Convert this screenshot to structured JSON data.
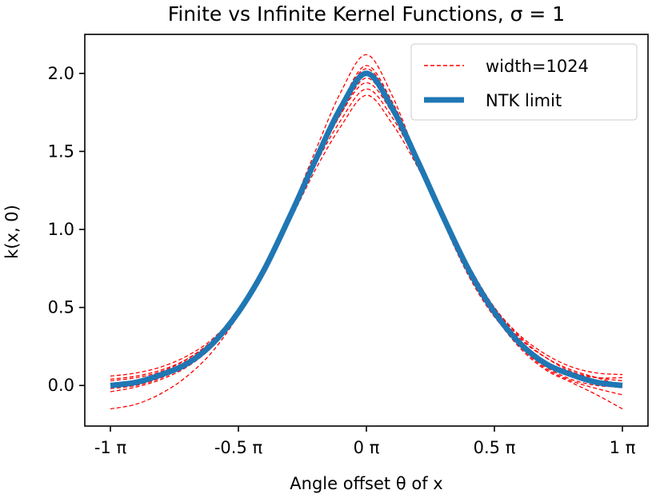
{
  "chart_data": {
    "type": "line",
    "title": "Finite vs Infinite Kernel Functions, σ = 1",
    "xlabel": "Angle offset θ of x",
    "ylabel": "k(x, 0)",
    "xlim": [
      -1.1,
      1.1
    ],
    "ylim": [
      -0.26,
      2.25
    ],
    "xticks": [
      -1,
      -0.5,
      0,
      0.5,
      1
    ],
    "xtick_labels": [
      "-1 π",
      "-0.5 π",
      "0 π",
      "0.5 π",
      "1 π"
    ],
    "yticks": [
      0.0,
      0.5,
      1.0,
      1.5,
      2.0
    ],
    "ytick_labels": [
      "0.0",
      "0.5",
      "1.0",
      "1.5",
      "2.0"
    ],
    "grid": false,
    "legend_position": "top-right",
    "legend": [
      {
        "label": "width=1024",
        "color": "#ff0000",
        "style": "dashed"
      },
      {
        "label": "NTK limit",
        "color": "#1f77b4",
        "style": "solid"
      }
    ],
    "series": [
      {
        "name": "NTK limit",
        "color": "#1f77b4",
        "x": [
          -1,
          -0.9,
          -0.8,
          -0.7,
          -0.6,
          -0.5,
          -0.4,
          -0.3,
          -0.2,
          -0.1,
          0,
          0.1,
          0.2,
          0.3,
          0.4,
          0.5,
          0.6,
          0.7,
          0.8,
          0.9,
          1
        ],
        "values": [
          0.0,
          0.02,
          0.07,
          0.14,
          0.27,
          0.47,
          0.74,
          1.08,
          1.44,
          1.78,
          2.0,
          1.78,
          1.44,
          1.08,
          0.74,
          0.47,
          0.27,
          0.14,
          0.07,
          0.02,
          0.0
        ]
      },
      {
        "name": "width=1024 sample 1",
        "color": "#ff0000",
        "x": [
          -1,
          -0.9,
          -0.8,
          -0.7,
          -0.6,
          -0.5,
          -0.4,
          -0.3,
          -0.2,
          -0.1,
          0,
          0.1,
          0.2,
          0.3,
          0.4,
          0.5,
          0.6,
          0.7,
          0.8,
          0.9,
          1
        ],
        "values": [
          -0.15,
          -0.12,
          -0.05,
          0.06,
          0.22,
          0.45,
          0.74,
          1.1,
          1.5,
          1.88,
          2.12,
          1.86,
          1.45,
          1.05,
          0.7,
          0.44,
          0.27,
          0.15,
          0.08,
          0.05,
          0.05
        ]
      },
      {
        "name": "width=1024 sample 2",
        "color": "#ff0000",
        "x": [
          -1,
          -0.9,
          -0.8,
          -0.7,
          -0.6,
          -0.5,
          -0.4,
          -0.3,
          -0.2,
          -0.1,
          0,
          0.1,
          0.2,
          0.3,
          0.4,
          0.5,
          0.6,
          0.7,
          0.8,
          0.9,
          1
        ],
        "values": [
          0.06,
          0.08,
          0.12,
          0.19,
          0.3,
          0.48,
          0.73,
          1.05,
          1.38,
          1.66,
          1.86,
          1.68,
          1.4,
          1.07,
          0.75,
          0.49,
          0.3,
          0.18,
          0.1,
          0.05,
          0.0
        ]
      },
      {
        "name": "width=1024 sample 3",
        "color": "#ff0000",
        "x": [
          -1,
          -0.9,
          -0.8,
          -0.7,
          -0.6,
          -0.5,
          -0.4,
          -0.3,
          -0.2,
          -0.1,
          0,
          0.1,
          0.2,
          0.3,
          0.4,
          0.5,
          0.6,
          0.7,
          0.8,
          0.9,
          1
        ],
        "values": [
          0.03,
          0.05,
          0.09,
          0.17,
          0.29,
          0.48,
          0.75,
          1.08,
          1.44,
          1.8,
          2.05,
          1.82,
          1.47,
          1.09,
          0.74,
          0.45,
          0.24,
          0.1,
          0.02,
          -0.06,
          -0.15
        ]
      },
      {
        "name": "width=1024 sample 4",
        "color": "#ff0000",
        "x": [
          -1,
          -0.9,
          -0.8,
          -0.7,
          -0.6,
          -0.5,
          -0.4,
          -0.3,
          -0.2,
          -0.1,
          0,
          0.1,
          0.2,
          0.3,
          0.4,
          0.5,
          0.6,
          0.7,
          0.8,
          0.9,
          1
        ],
        "values": [
          -0.04,
          -0.01,
          0.04,
          0.12,
          0.25,
          0.45,
          0.73,
          1.07,
          1.42,
          1.74,
          1.94,
          1.75,
          1.43,
          1.09,
          0.77,
          0.5,
          0.31,
          0.18,
          0.09,
          0.05,
          0.03
        ]
      },
      {
        "name": "width=1024 sample 5",
        "color": "#ff0000",
        "x": [
          -1,
          -0.9,
          -0.8,
          -0.7,
          -0.6,
          -0.5,
          -0.4,
          -0.3,
          -0.2,
          -0.1,
          0,
          0.1,
          0.2,
          0.3,
          0.4,
          0.5,
          0.6,
          0.7,
          0.8,
          0.9,
          1
        ],
        "values": [
          0.01,
          0.03,
          0.08,
          0.16,
          0.28,
          0.47,
          0.74,
          1.07,
          1.42,
          1.74,
          1.97,
          1.76,
          1.43,
          1.07,
          0.73,
          0.45,
          0.25,
          0.12,
          0.04,
          0.0,
          -0.01
        ]
      },
      {
        "name": "width=1024 sample 6",
        "color": "#ff0000",
        "x": [
          -1,
          -0.9,
          -0.8,
          -0.7,
          -0.6,
          -0.5,
          -0.4,
          -0.3,
          -0.2,
          -0.1,
          0,
          0.1,
          0.2,
          0.3,
          0.4,
          0.5,
          0.6,
          0.7,
          0.8,
          0.9,
          1
        ],
        "values": [
          0.04,
          0.06,
          0.1,
          0.17,
          0.29,
          0.47,
          0.73,
          1.06,
          1.41,
          1.7,
          1.9,
          1.72,
          1.42,
          1.08,
          0.76,
          0.5,
          0.32,
          0.2,
          0.12,
          0.08,
          0.07
        ]
      },
      {
        "name": "width=1024 sample 7",
        "color": "#ff0000",
        "x": [
          -1,
          -0.9,
          -0.8,
          -0.7,
          -0.6,
          -0.5,
          -0.4,
          -0.3,
          -0.2,
          -0.1,
          0,
          0.1,
          0.2,
          0.3,
          0.4,
          0.5,
          0.6,
          0.7,
          0.8,
          0.9,
          1
        ],
        "values": [
          -0.02,
          0.0,
          0.05,
          0.13,
          0.26,
          0.46,
          0.74,
          1.09,
          1.46,
          1.8,
          2.03,
          1.81,
          1.46,
          1.08,
          0.73,
          0.45,
          0.25,
          0.11,
          0.03,
          -0.02,
          -0.06
        ]
      }
    ]
  }
}
